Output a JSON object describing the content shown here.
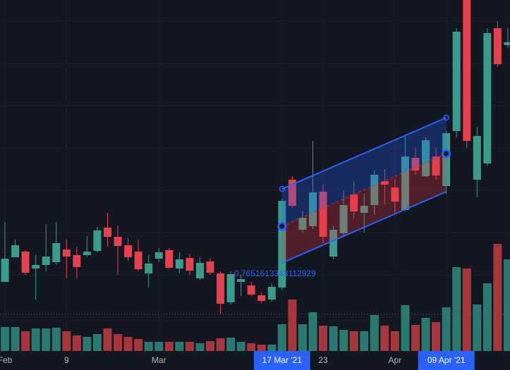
{
  "chart_data": {
    "type": "candlestick",
    "categories": [
      "Feb",
      null,
      null,
      null,
      null,
      null,
      "9",
      null,
      null,
      null,
      null,
      null,
      null,
      null,
      null,
      "Mar",
      null,
      null,
      null,
      null,
      null,
      null,
      null,
      null,
      null,
      null,
      null,
      "17 Mar '21",
      null,
      null,
      null,
      "23",
      null,
      null,
      null,
      null,
      null,
      null,
      "Apr",
      null,
      null,
      null,
      null,
      "09 Apr '21",
      null,
      null,
      null,
      null,
      null,
      null
    ],
    "highlighted": [
      27,
      43
    ],
    "open": [
      125,
      160,
      168,
      144,
      149,
      153,
      171,
      163,
      163,
      169,
      202,
      189,
      177,
      168,
      137,
      158,
      170,
      144,
      159,
      130,
      154,
      137,
      96,
      125,
      120,
      106,
      100,
      117,
      270,
      199,
      204,
      253,
      161,
      194,
      249,
      223,
      234,
      268,
      259,
      227,
      301,
      275,
      303,
      261,
      339,
      525,
      270,
      293,
      485,
      461
    ],
    "close": [
      158,
      177,
      138,
      149,
      161,
      180,
      161,
      146,
      168,
      198,
      189,
      176,
      160,
      143,
      151,
      167,
      145,
      157,
      141,
      152,
      138,
      94,
      136,
      129,
      107,
      98,
      118,
      240,
      233,
      216,
      252,
      189,
      199,
      234,
      225,
      233,
      277,
      263,
      239,
      303,
      283,
      326,
      276,
      336,
      480,
      325,
      332,
      478,
      434,
      465
    ],
    "high": [
      210,
      185,
      170,
      163,
      207,
      210,
      185,
      175,
      190,
      203,
      223,
      205,
      187,
      185,
      163,
      173,
      173,
      167,
      165,
      160,
      159,
      140,
      140,
      135,
      125,
      110,
      123,
      243,
      275,
      225,
      325,
      263,
      205,
      255,
      267,
      250,
      283,
      285,
      270,
      333,
      315,
      330,
      315,
      340,
      485,
      525,
      345,
      485,
      495,
      485
    ],
    "low": [
      125,
      160,
      135,
      100,
      140,
      150,
      130,
      130,
      160,
      167,
      175,
      135,
      155,
      140,
      117,
      153,
      143,
      137,
      135,
      128,
      135,
      80,
      93,
      105,
      105,
      95,
      97,
      113,
      230,
      195,
      200,
      180,
      157,
      190,
      215,
      195,
      220,
      235,
      223,
      225,
      277,
      273,
      270,
      250,
      330,
      315,
      245,
      290,
      430,
      457
    ],
    "volume": [
      34,
      34,
      28,
      32,
      32,
      33,
      28,
      22,
      20,
      24,
      32,
      24,
      20,
      17,
      13,
      13,
      13,
      13,
      13,
      11,
      14,
      18,
      19,
      13,
      11,
      9,
      9,
      38,
      73,
      38,
      55,
      36,
      35,
      30,
      28,
      28,
      51,
      36,
      28,
      65,
      37,
      47,
      41,
      62,
      119,
      117,
      66,
      96,
      152,
      130
    ],
    "up_color": "#3a9c8b",
    "down_color": "#e5424d",
    "volume_up_color": "#2b7a70",
    "volume_down_color": "#a8363d",
    "ylim": [
      0,
      525
    ],
    "vlim": [
      0,
      498
    ],
    "price_line": 79,
    "channel": {
      "from": 27,
      "to": 43,
      "top": [
        257,
        358
      ],
      "mid": [
        204,
        307
      ],
      "bottom": [
        152,
        253
      ],
      "label": "0.7651613343112929"
    }
  }
}
